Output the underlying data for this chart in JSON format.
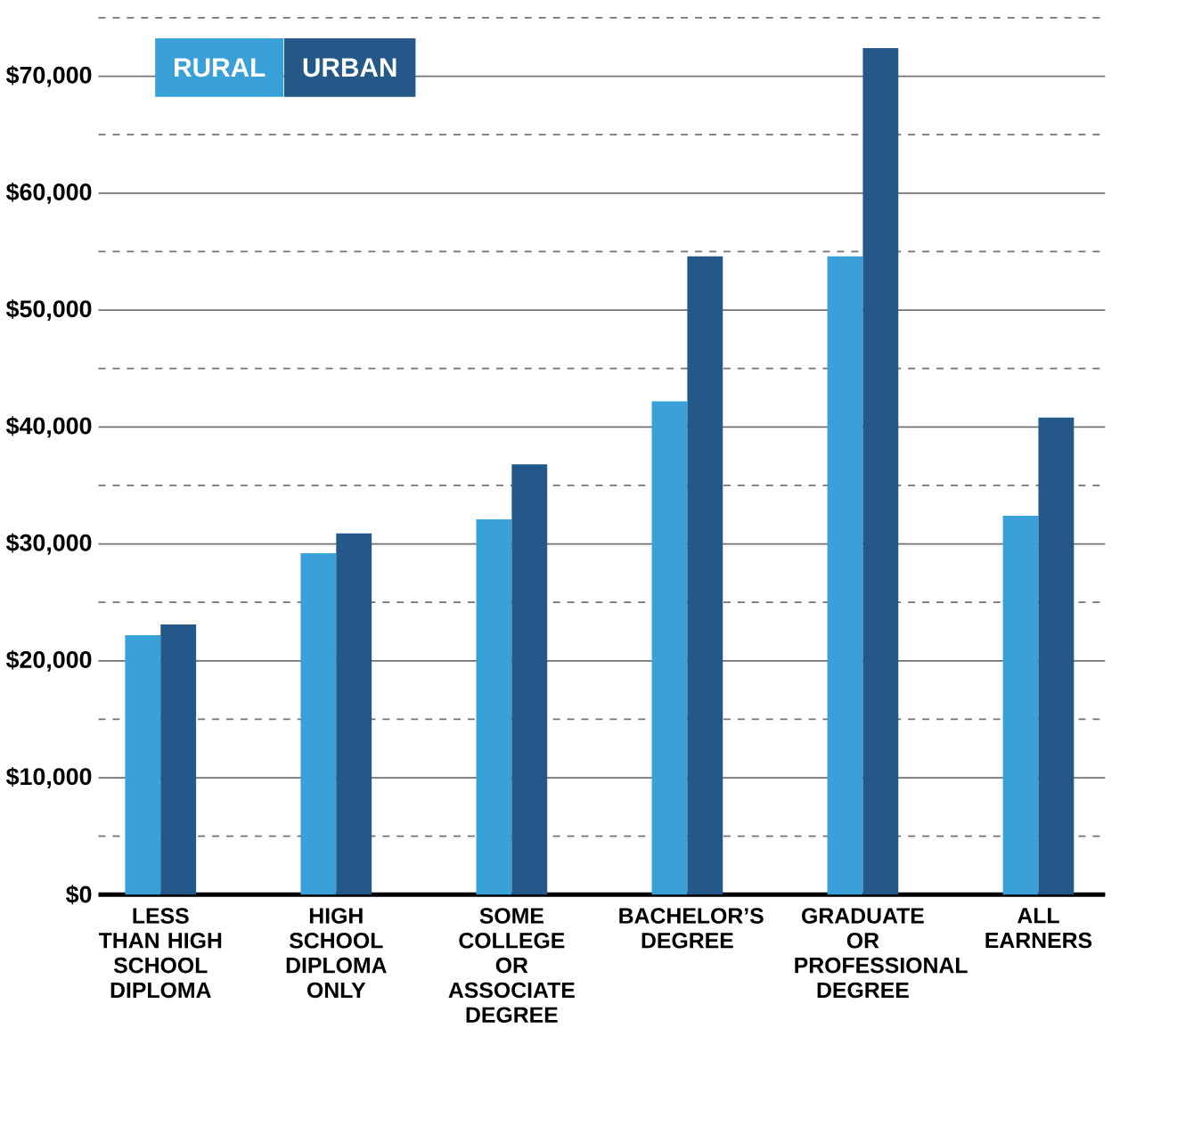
{
  "chart_data": {
    "type": "bar",
    "categories": [
      "LESS THAN HIGH SCHOOL DIPLOMA",
      "HIGH SCHOOL DIPLOMA ONLY",
      "SOME COLLEGE OR ASSOCIATE DEGREE",
      "BACHELOR’S DEGREE",
      "GRADUATE OR PROFESSIONAL DEGREE",
      "ALL EARNERS"
    ],
    "series": [
      {
        "name": "RURAL",
        "color": "#3aa0d8",
        "values": [
          22200,
          29200,
          32100,
          42200,
          54600,
          32400
        ]
      },
      {
        "name": "URBAN",
        "color": "#245888",
        "values": [
          23100,
          30900,
          36800,
          54600,
          72400,
          40800
        ]
      }
    ],
    "ylim": [
      0,
      75000
    ],
    "yticks": [
      {
        "value": 0,
        "label": "$0"
      },
      {
        "value": 5000,
        "label": null
      },
      {
        "value": 10000,
        "label": "$10,000"
      },
      {
        "value": 15000,
        "label": null
      },
      {
        "value": 20000,
        "label": "$20,000"
      },
      {
        "value": 25000,
        "label": null
      },
      {
        "value": 30000,
        "label": "$30,000"
      },
      {
        "value": 35000,
        "label": null
      },
      {
        "value": 40000,
        "label": "$40,000"
      },
      {
        "value": 45000,
        "label": null
      },
      {
        "value": 50000,
        "label": "$50,000"
      },
      {
        "value": 55000,
        "label": null
      },
      {
        "value": 60000,
        "label": "$60,000"
      },
      {
        "value": 65000,
        "label": null
      },
      {
        "value": 70000,
        "label": "$70,000"
      },
      {
        "value": 75000,
        "label": null
      }
    ],
    "grid": "y",
    "legend": "top left"
  }
}
